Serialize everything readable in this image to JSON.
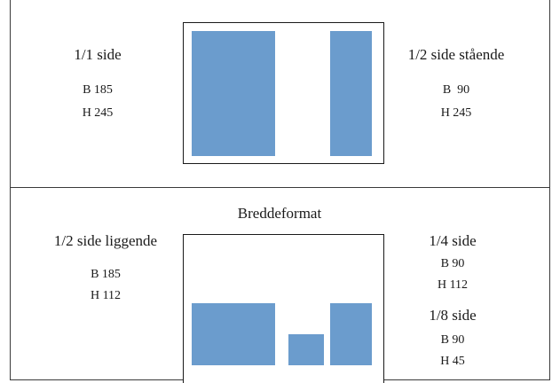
{
  "top": {
    "left": {
      "title": "1/1 side",
      "width": "B 185",
      "height": "H 245"
    },
    "right": {
      "title": "1/2 side stående",
      "width": "B  90",
      "height": "H 245"
    }
  },
  "bottom": {
    "heading": "Breddeformat",
    "left": {
      "title": "1/2 side liggende",
      "width": "B 185",
      "height": "H 112"
    },
    "right_upper": {
      "title": "1/4 side",
      "width": "B 90",
      "height": "H 112"
    },
    "right_lower": {
      "title": "1/8 side",
      "width": "B 90",
      "height": "H 45"
    }
  },
  "colors": {
    "block": "#6b9ccd",
    "border": "#1a1a1a"
  }
}
